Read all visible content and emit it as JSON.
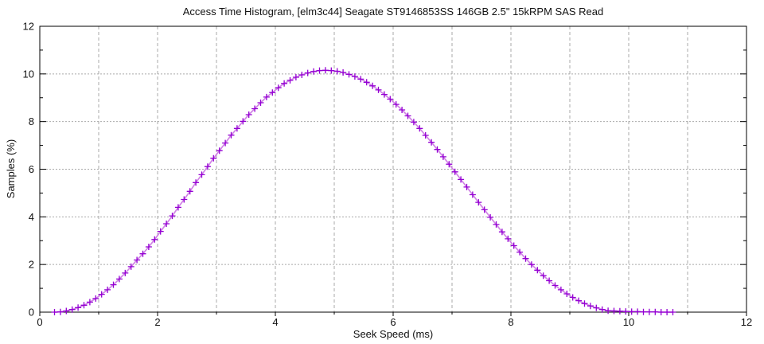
{
  "chart": {
    "title": "Access Time Histogram, [elm3c44] Seagate ST9146853SS 146GB 2.5\" 15kRPM SAS Read",
    "xlabel": "Seek Speed (ms)",
    "ylabel": "Samples (%)"
  },
  "chart_data": {
    "type": "line",
    "title": "Access Time Histogram, [elm3c44] Seagate ST9146853SS 146GB 2.5\" 15kRPM SAS Read",
    "xlabel": "Seek Speed (ms)",
    "ylabel": "Samples (%)",
    "xlim": [
      0,
      12
    ],
    "ylim": [
      0,
      12
    ],
    "xticks_major": [
      0,
      2,
      4,
      6,
      8,
      10,
      12
    ],
    "xtick_labels": [
      "0",
      "2",
      "4",
      "6",
      "8",
      "10",
      "12"
    ],
    "xticks_minor": [
      1,
      3,
      5,
      7,
      9,
      11
    ],
    "yticks_major": [
      0,
      2,
      4,
      6,
      8,
      10,
      12
    ],
    "ytick_labels": [
      "0",
      "2",
      "4",
      "6",
      "8",
      "10",
      "12"
    ],
    "yticks_minor": [
      1,
      3,
      5,
      7,
      9,
      11
    ],
    "x_grid_lines": [
      1,
      2,
      3,
      4,
      5,
      6,
      7,
      8,
      9,
      10,
      11
    ],
    "y_grid_lines": [
      2,
      4,
      6,
      8,
      10
    ],
    "grid": true,
    "legend": "none",
    "colors": {
      "background": "#ffffff",
      "border": "#000000",
      "grid": "#a9a9a9",
      "line": "#d183e6",
      "marker": "#9400d3",
      "text": "#111111"
    },
    "series": [
      {
        "name": "samples-percent-vs-seek-speed",
        "marker": "plus",
        "x_start": 0.25,
        "x_step": 0.1,
        "values": [
          0.0,
          0.01,
          0.05,
          0.11,
          0.19,
          0.29,
          0.42,
          0.57,
          0.75,
          0.94,
          1.15,
          1.39,
          1.64,
          1.91,
          2.19,
          2.45,
          2.74,
          3.05,
          3.39,
          3.71,
          4.04,
          4.4,
          4.73,
          5.07,
          5.44,
          5.77,
          6.11,
          6.46,
          6.78,
          7.1,
          7.43,
          7.71,
          8.01,
          8.29,
          8.54,
          8.79,
          9.03,
          9.22,
          9.42,
          9.6,
          9.73,
          9.86,
          9.96,
          10.04,
          10.1,
          10.14,
          10.15,
          10.14,
          10.11,
          10.06,
          9.98,
          9.89,
          9.78,
          9.65,
          9.5,
          9.33,
          9.14,
          8.94,
          8.72,
          8.49,
          8.24,
          7.98,
          7.71,
          7.42,
          7.13,
          6.83,
          6.52,
          6.21,
          5.89,
          5.57,
          5.25,
          4.93,
          4.61,
          4.3,
          3.98,
          3.68,
          3.37,
          3.08,
          2.79,
          2.52,
          2.25,
          2.0,
          1.76,
          1.53,
          1.32,
          1.12,
          0.94,
          0.77,
          0.62,
          0.48,
          0.36,
          0.26,
          0.18,
          0.11,
          0.06,
          0.05,
          0.04,
          0.03,
          0.02,
          0.02,
          0.01,
          0.01,
          0.01,
          0.0,
          0.0,
          0.0
        ]
      }
    ],
    "peak": {
      "x": 4.85,
      "y": 10.15
    }
  }
}
